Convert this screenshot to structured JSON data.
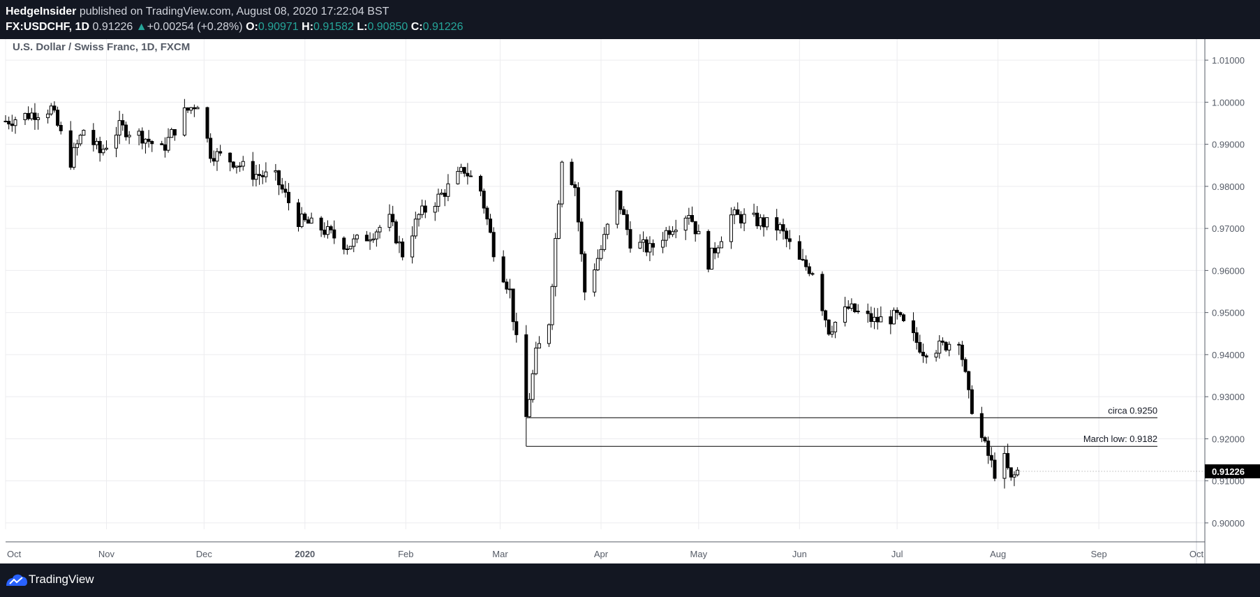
{
  "header": {
    "author": "HedgeInsider",
    "published_text": "published on TradingView.com, August 08, 2020 17:22:04 BST",
    "symbol": "FX:USDCHF, 1D",
    "last": "0.91226",
    "change": "+0.00254 (+0.28%)",
    "open_label": "O:",
    "open": "0.90971",
    "high_label": "H:",
    "high": "0.91582",
    "low_label": "L:",
    "low": "0.90850",
    "close_label": "C:",
    "close": "0.91226"
  },
  "chart_title": "U.S. Dollar / Swiss Franc, 1D, FXCM",
  "footer": {
    "brand": "TradingView"
  },
  "colors": {
    "background": "#131722",
    "accent": "#26a69a",
    "candle_up": "#ffffff",
    "candle_down": "#000000"
  },
  "chart_data": {
    "type": "candlestick",
    "title": "U.S. Dollar / Swiss Franc, 1D, FXCM",
    "x_axis": {
      "tick_labels": [
        "Oct",
        "Nov",
        "Dec",
        "2020",
        "Feb",
        "Mar",
        "Apr",
        "May",
        "Jun",
        "Jul",
        "Aug",
        "Sep",
        "Oct"
      ],
      "tick_dates": [
        "2019-10-01",
        "2019-11-01",
        "2019-12-01",
        "2020-01-01",
        "2020-02-01",
        "2020-03-01",
        "2020-04-01",
        "2020-05-01",
        "2020-06-01",
        "2020-07-01",
        "2020-08-01",
        "2020-09-01",
        "2020-10-01"
      ],
      "range": [
        "2019-10-01",
        "2020-10-01"
      ]
    },
    "y_axis": {
      "ticks": [
        "0.90000",
        "0.91000",
        "0.92000",
        "0.93000",
        "0.94000",
        "0.95000",
        "0.96000",
        "0.97000",
        "0.98000",
        "0.99000",
        "1.00000",
        "1.01000"
      ],
      "range": [
        0.8955,
        1.015
      ],
      "position": "right"
    },
    "grid": true,
    "last_price_label": "0.91226",
    "anchors": [
      {
        "date": "2019-10-01",
        "close": 0.9955
      },
      {
        "date": "2019-10-15",
        "close": 0.9985
      },
      {
        "date": "2019-10-21",
        "close": 0.986
      },
      {
        "date": "2019-10-25",
        "close": 0.9935
      },
      {
        "date": "2019-10-30",
        "close": 0.988
      },
      {
        "date": "2019-11-05",
        "close": 0.994
      },
      {
        "date": "2019-11-12",
        "close": 0.992
      },
      {
        "date": "2019-11-18",
        "close": 0.9885
      },
      {
        "date": "2019-11-25",
        "close": 0.9975
      },
      {
        "date": "2019-11-29",
        "close": 1.0
      },
      {
        "date": "2019-12-03",
        "close": 0.988
      },
      {
        "date": "2019-12-10",
        "close": 0.986
      },
      {
        "date": "2019-12-16",
        "close": 0.983
      },
      {
        "date": "2019-12-23",
        "close": 0.982
      },
      {
        "date": "2019-12-30",
        "close": 0.972
      },
      {
        "date": "2020-01-06",
        "close": 0.97
      },
      {
        "date": "2020-01-14",
        "close": 0.966
      },
      {
        "date": "2020-01-20",
        "close": 0.968
      },
      {
        "date": "2020-01-27",
        "close": 0.972
      },
      {
        "date": "2020-01-31",
        "close": 0.964
      },
      {
        "date": "2020-02-05",
        "close": 0.973
      },
      {
        "date": "2020-02-12",
        "close": 0.978
      },
      {
        "date": "2020-02-19",
        "close": 0.984
      },
      {
        "date": "2020-02-24",
        "close": 0.979
      },
      {
        "date": "2020-02-28",
        "close": 0.965
      },
      {
        "date": "2020-03-04",
        "close": 0.955
      },
      {
        "date": "2020-03-09",
        "close": 0.925
      },
      {
        "date": "2020-03-12",
        "close": 0.94
      },
      {
        "date": "2020-03-16",
        "close": 0.948
      },
      {
        "date": "2020-03-20",
        "close": 0.987
      },
      {
        "date": "2020-03-24",
        "close": 0.98
      },
      {
        "date": "2020-03-27",
        "close": 0.955
      },
      {
        "date": "2020-04-01",
        "close": 0.965
      },
      {
        "date": "2020-04-06",
        "close": 0.978
      },
      {
        "date": "2020-04-10",
        "close": 0.967
      },
      {
        "date": "2020-04-16",
        "close": 0.965
      },
      {
        "date": "2020-04-22",
        "close": 0.97
      },
      {
        "date": "2020-04-28",
        "close": 0.974
      },
      {
        "date": "2020-05-04",
        "close": 0.962
      },
      {
        "date": "2020-05-11",
        "close": 0.973
      },
      {
        "date": "2020-05-18",
        "close": 0.972
      },
      {
        "date": "2020-05-26",
        "close": 0.97
      },
      {
        "date": "2020-06-01",
        "close": 0.962
      },
      {
        "date": "2020-06-05",
        "close": 0.96
      },
      {
        "date": "2020-06-10",
        "close": 0.946
      },
      {
        "date": "2020-06-16",
        "close": 0.951
      },
      {
        "date": "2020-06-24",
        "close": 0.948
      },
      {
        "date": "2020-07-01",
        "close": 0.949
      },
      {
        "date": "2020-07-09",
        "close": 0.941
      },
      {
        "date": "2020-07-15",
        "close": 0.942
      },
      {
        "date": "2020-07-20",
        "close": 0.944
      },
      {
        "date": "2020-07-23",
        "close": 0.93
      },
      {
        "date": "2020-07-27",
        "close": 0.92
      },
      {
        "date": "2020-07-31",
        "close": 0.912
      },
      {
        "date": "2020-08-03",
        "close": 0.915
      },
      {
        "date": "2020-08-05",
        "close": 0.91
      },
      {
        "date": "2020-08-07",
        "close": 0.9123
      }
    ],
    "annotations": [
      {
        "label": "circa 0.9250",
        "price": 0.925,
        "from": "2020-03-09",
        "to": "2020-09-19"
      },
      {
        "label": "March low: 0.9182",
        "price": 0.9182,
        "from": "2020-03-09",
        "to": "2020-09-19"
      }
    ]
  }
}
